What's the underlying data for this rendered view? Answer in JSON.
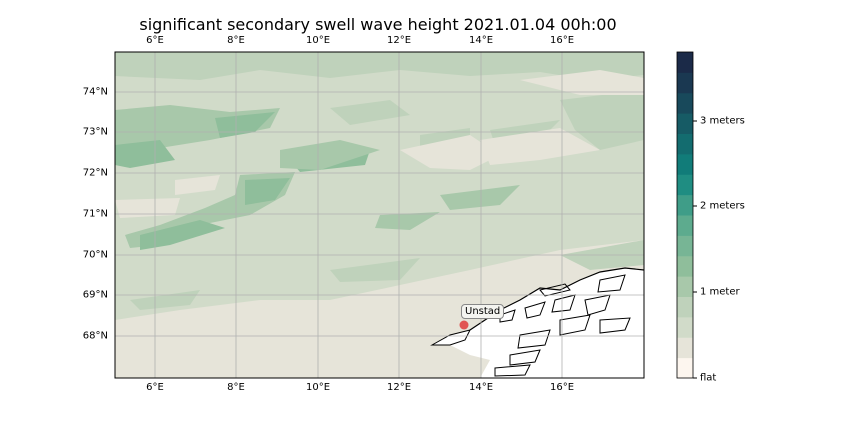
{
  "title": "significant secondary swell wave height 2021.01.04 00h:00",
  "map": {
    "lon_ticks": [
      "6°E",
      "8°E",
      "10°E",
      "12°E",
      "14°E",
      "16°E"
    ],
    "lat_ticks": [
      "74°N",
      "73°N",
      "72°N",
      "71°N",
      "70°N",
      "69°N",
      "68°N"
    ],
    "marker": {
      "label": "Unstad",
      "color": "#e03030"
    }
  },
  "colorbar": {
    "labels": [
      "3 meters",
      "2 meters",
      "1 meter",
      "flat"
    ],
    "colors": [
      "#fdf6ef",
      "#e6e4d9",
      "#d1dbc9",
      "#bfd2bb",
      "#a8c8aa",
      "#8fbe9b",
      "#77b595",
      "#5dab8e",
      "#3f9d88",
      "#1f8d82",
      "#117c79",
      "#136c6f",
      "#165b65",
      "#18495b",
      "#1a3851",
      "#1b2a48"
    ]
  }
}
